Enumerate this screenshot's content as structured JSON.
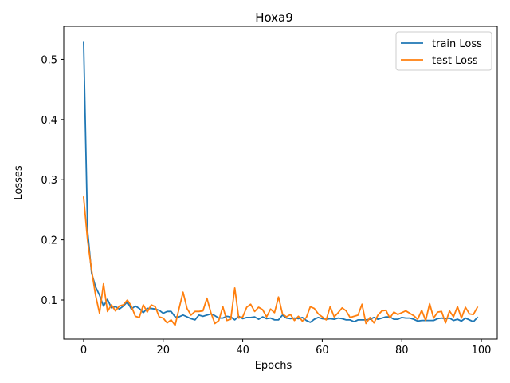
{
  "chart_data": {
    "type": "line",
    "title": "Hoxa9",
    "xlabel": "Epochs",
    "ylabel": "Losses",
    "xlim": [
      -5,
      104
    ],
    "ylim": [
      0.035,
      0.555
    ],
    "x_ticks": [
      0,
      20,
      40,
      60,
      80,
      100
    ],
    "y_ticks": [
      0.1,
      0.2,
      0.3,
      0.4,
      0.5
    ],
    "grid": false,
    "legend_position": "top-right",
    "x": [
      0,
      1,
      2,
      3,
      4,
      5,
      6,
      7,
      8,
      9,
      10,
      11,
      12,
      13,
      14,
      15,
      16,
      17,
      18,
      19,
      20,
      21,
      22,
      23,
      24,
      25,
      26,
      27,
      28,
      29,
      30,
      31,
      32,
      33,
      34,
      35,
      36,
      37,
      38,
      39,
      40,
      41,
      42,
      43,
      44,
      45,
      46,
      47,
      48,
      49,
      50,
      51,
      52,
      53,
      54,
      55,
      56,
      57,
      58,
      59,
      60,
      61,
      62,
      63,
      64,
      65,
      66,
      67,
      68,
      69,
      70,
      71,
      72,
      73,
      74,
      75,
      76,
      77,
      78,
      79,
      80,
      81,
      82,
      83,
      84,
      85,
      86,
      87,
      88,
      89,
      90,
      91,
      92,
      93,
      94,
      95,
      96,
      97,
      98,
      99
    ],
    "series": [
      {
        "name": "train Loss",
        "color": "#1f77b4",
        "values": [
          0.528,
          0.215,
          0.145,
          0.122,
          0.108,
          0.09,
          0.101,
          0.087,
          0.089,
          0.085,
          0.09,
          0.097,
          0.085,
          0.09,
          0.086,
          0.079,
          0.086,
          0.086,
          0.085,
          0.083,
          0.078,
          0.081,
          0.081,
          0.072,
          0.072,
          0.075,
          0.072,
          0.069,
          0.067,
          0.075,
          0.073,
          0.075,
          0.077,
          0.074,
          0.07,
          0.07,
          0.073,
          0.072,
          0.067,
          0.073,
          0.069,
          0.071,
          0.071,
          0.072,
          0.068,
          0.072,
          0.069,
          0.07,
          0.067,
          0.067,
          0.075,
          0.07,
          0.069,
          0.07,
          0.069,
          0.071,
          0.066,
          0.063,
          0.068,
          0.071,
          0.069,
          0.068,
          0.069,
          0.068,
          0.07,
          0.069,
          0.067,
          0.067,
          0.064,
          0.067,
          0.067,
          0.067,
          0.068,
          0.071,
          0.068,
          0.07,
          0.072,
          0.072,
          0.068,
          0.068,
          0.071,
          0.07,
          0.07,
          0.068,
          0.065,
          0.066,
          0.066,
          0.066,
          0.066,
          0.069,
          0.07,
          0.069,
          0.07,
          0.066,
          0.068,
          0.065,
          0.07,
          0.067,
          0.064,
          0.071
        ]
      },
      {
        "name": "test Loss",
        "color": "#ff7f0e",
        "values": [
          0.271,
          0.199,
          0.15,
          0.108,
          0.078,
          0.127,
          0.081,
          0.092,
          0.082,
          0.09,
          0.092,
          0.1,
          0.09,
          0.073,
          0.071,
          0.092,
          0.08,
          0.092,
          0.089,
          0.072,
          0.07,
          0.062,
          0.067,
          0.058,
          0.086,
          0.113,
          0.086,
          0.075,
          0.081,
          0.081,
          0.082,
          0.103,
          0.079,
          0.061,
          0.066,
          0.089,
          0.066,
          0.068,
          0.12,
          0.07,
          0.072,
          0.088,
          0.093,
          0.081,
          0.088,
          0.084,
          0.072,
          0.085,
          0.079,
          0.105,
          0.077,
          0.072,
          0.076,
          0.066,
          0.073,
          0.065,
          0.071,
          0.089,
          0.086,
          0.077,
          0.072,
          0.067,
          0.089,
          0.072,
          0.079,
          0.087,
          0.082,
          0.071,
          0.073,
          0.075,
          0.093,
          0.061,
          0.071,
          0.062,
          0.075,
          0.082,
          0.083,
          0.07,
          0.08,
          0.076,
          0.079,
          0.082,
          0.078,
          0.074,
          0.068,
          0.083,
          0.066,
          0.094,
          0.07,
          0.08,
          0.081,
          0.062,
          0.082,
          0.072,
          0.089,
          0.07,
          0.088,
          0.077,
          0.076,
          0.088
        ]
      }
    ]
  }
}
